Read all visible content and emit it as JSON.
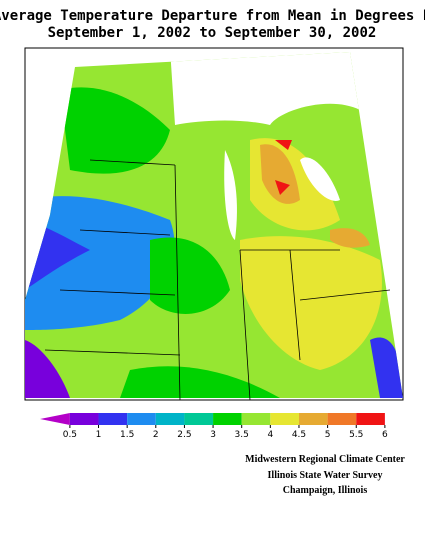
{
  "title": [
    "Average Temperature Departure from Mean in Degrees F",
    "September 1, 2002 to September 30, 2002"
  ],
  "legend": {
    "ticks": [
      0.5,
      1,
      1.5,
      2,
      2.5,
      3,
      3.5,
      4,
      4.5,
      5,
      5.5,
      6
    ],
    "colors": [
      "#b400c8",
      "#7800dc",
      "#3232f0",
      "#1e8cf0",
      "#00b4c8",
      "#00c896",
      "#00d200",
      "#96e632",
      "#e6e632",
      "#e6aa32",
      "#f07828",
      "#f01414",
      "#e6008c"
    ]
  },
  "credits": [
    "Midwestern Regional Climate Center",
    "Illinois State Water Survey",
    "Champaign, Illinois"
  ]
}
